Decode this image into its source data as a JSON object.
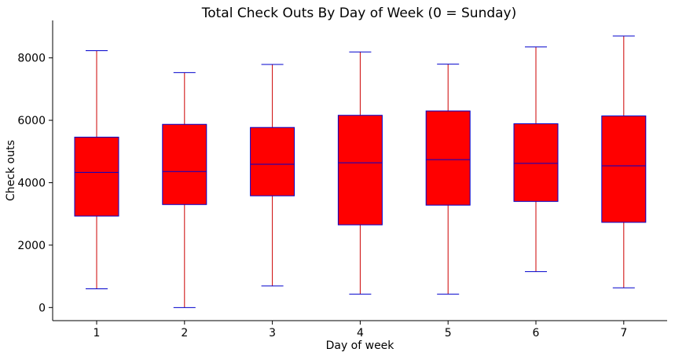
{
  "chart_data": {
    "type": "box",
    "title": "Total Check Outs By Day of Week (0 = Sunday)",
    "xlabel": "Day of week",
    "ylabel": "Check outs",
    "categories": [
      "1",
      "2",
      "3",
      "4",
      "5",
      "6",
      "7"
    ],
    "ylim": [
      -420,
      9200
    ],
    "yticks": [
      0,
      2000,
      4000,
      6000,
      8000
    ],
    "grid": false,
    "colors": {
      "box_fill": "#ff0000",
      "box_edge": "#0000cc",
      "median": "#0000cc",
      "whisker": "#cc0000",
      "cap": "#0000cc"
    },
    "boxes": [
      {
        "category": "1",
        "min": 600,
        "q1": 2930,
        "median": 4330,
        "q3": 5460,
        "max": 8230
      },
      {
        "category": "2",
        "min": 0,
        "q1": 3300,
        "median": 4360,
        "q3": 5870,
        "max": 7530
      },
      {
        "category": "3",
        "min": 690,
        "q1": 3580,
        "median": 4590,
        "q3": 5770,
        "max": 7790
      },
      {
        "category": "4",
        "min": 430,
        "q1": 2650,
        "median": 4640,
        "q3": 6160,
        "max": 8190
      },
      {
        "category": "5",
        "min": 430,
        "q1": 3280,
        "median": 4740,
        "q3": 6300,
        "max": 7800
      },
      {
        "category": "6",
        "min": 1150,
        "q1": 3400,
        "median": 4620,
        "q3": 5890,
        "max": 8350
      },
      {
        "category": "7",
        "min": 630,
        "q1": 2730,
        "median": 4540,
        "q3": 6140,
        "max": 8700
      }
    ]
  }
}
